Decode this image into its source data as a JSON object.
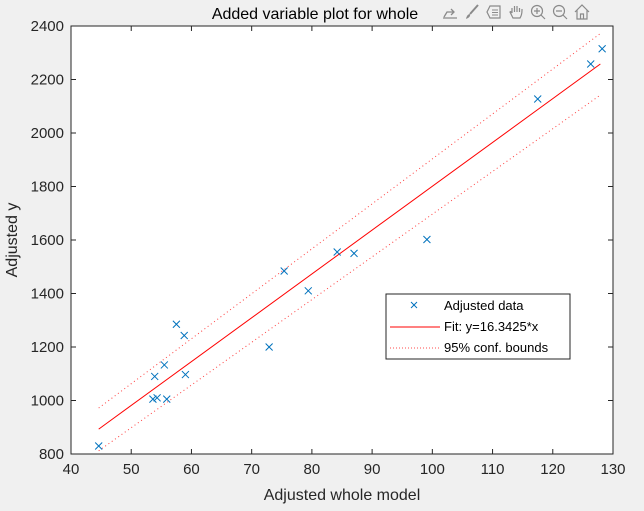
{
  "window": {
    "background": "#f0f0f0"
  },
  "toolbar": {
    "items": [
      {
        "name": "export-icon",
        "label": "Export"
      },
      {
        "name": "brush-icon",
        "label": "Brush"
      },
      {
        "name": "datatip-icon",
        "label": "Data tips"
      },
      {
        "name": "pan-icon",
        "label": "Pan"
      },
      {
        "name": "zoom-in-icon",
        "label": "Zoom in"
      },
      {
        "name": "zoom-out-icon",
        "label": "Zoom out"
      },
      {
        "name": "home-icon",
        "label": "Restore view"
      }
    ]
  },
  "chart_data": {
    "type": "scatter",
    "title": "Added variable plot for whole",
    "xlabel": "Adjusted whole model",
    "ylabel": "Adjusted y",
    "xlim": [
      40,
      130
    ],
    "ylim": [
      800,
      2400
    ],
    "xticks": [
      40,
      50,
      60,
      70,
      80,
      90,
      100,
      110,
      120,
      130
    ],
    "yticks": [
      800,
      1000,
      1200,
      1400,
      1600,
      1800,
      2000,
      2200,
      2400
    ],
    "grid": false,
    "legend_position": "inside-lower-right",
    "series": [
      {
        "name": "Adjusted data",
        "kind": "marker-x",
        "color": "#0072bd",
        "points": [
          [
            44.6,
            830
          ],
          [
            53.6,
            1005
          ],
          [
            53.9,
            1090
          ],
          [
            54.3,
            1010
          ],
          [
            55.5,
            1133
          ],
          [
            55.9,
            1005
          ],
          [
            57.5,
            1285
          ],
          [
            58.8,
            1243
          ],
          [
            59.0,
            1097
          ],
          [
            72.9,
            1200
          ],
          [
            75.4,
            1484
          ],
          [
            79.4,
            1410
          ],
          [
            84.2,
            1555
          ],
          [
            87.0,
            1550
          ],
          [
            99.1,
            1602
          ],
          [
            117.5,
            2127
          ],
          [
            126.3,
            2258
          ],
          [
            128.2,
            2315
          ]
        ]
      },
      {
        "name": "Fit: y=16.3425*x",
        "kind": "line",
        "color": "#ff0000",
        "points": [
          [
            44.6,
            893
          ],
          [
            127.9,
            2258
          ]
        ]
      },
      {
        "name": "95% conf. bounds",
        "kind": "dotted-line",
        "color": "#ff0000",
        "points_upper": [
          [
            44.6,
            972
          ],
          [
            127.9,
            2372
          ]
        ],
        "points_lower": [
          [
            44.6,
            812
          ],
          [
            127.9,
            2142
          ]
        ]
      }
    ],
    "legend": [
      "Adjusted data",
      "Fit: y=16.3425*x",
      "95% conf. bounds"
    ]
  }
}
